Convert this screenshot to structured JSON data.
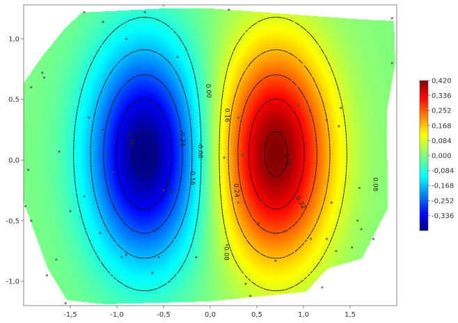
{
  "chart_data": {
    "type": "heatmap",
    "subtype": "interpolated-contour",
    "title": "",
    "xlabel": "",
    "ylabel": "",
    "xlim": [
      -2.0,
      2.0
    ],
    "ylim": [
      -1.2,
      1.28
    ],
    "x_ticks": [
      {
        "value": -1.5,
        "label": "-1,5"
      },
      {
        "value": -1.0,
        "label": "-1,0"
      },
      {
        "value": -0.5,
        "label": "-0,5"
      },
      {
        "value": 0.0,
        "label": "0,0"
      },
      {
        "value": 0.5,
        "label": "0,5"
      },
      {
        "value": 1.0,
        "label": "1,0"
      },
      {
        "value": 1.5,
        "label": "1,5"
      }
    ],
    "y_ticks": [
      {
        "value": 1.0,
        "label": "1,0"
      },
      {
        "value": 0.5,
        "label": "0,5"
      },
      {
        "value": 0.0,
        "label": "0,0"
      },
      {
        "value": -0.5,
        "label": "-0,5"
      },
      {
        "value": -1.0,
        "label": "-1,0"
      }
    ],
    "colorbar": {
      "range": [
        -0.42,
        0.42
      ],
      "colormap": "jet",
      "ticks": [
        {
          "value": 0.42,
          "label": "0,420"
        },
        {
          "value": 0.336,
          "label": "0,336"
        },
        {
          "value": 0.252,
          "label": "0,252"
        },
        {
          "value": 0.168,
          "label": "0,168"
        },
        {
          "value": 0.084,
          "label": "0,084"
        },
        {
          "value": 0.0,
          "label": "0,000"
        },
        {
          "value": -0.084,
          "label": "-0,084"
        },
        {
          "value": -0.168,
          "label": "-0,168"
        },
        {
          "value": -0.252,
          "label": "-0,252"
        },
        {
          "value": -0.336,
          "label": "-0,336"
        }
      ]
    },
    "field": {
      "negative_peak": {
        "x": -0.7,
        "y": 0.05,
        "value": -0.42
      },
      "positive_peak": {
        "x": 0.7,
        "y": 0.05,
        "value": 0.42
      },
      "sigma_x": 0.42,
      "sigma_y": 0.62
    },
    "contour_levels": [
      -0.4,
      -0.32,
      -0.24,
      -0.16,
      -0.08,
      0.0,
      0.08,
      0.16,
      0.24,
      0.32,
      0.4
    ],
    "contour_labels": [
      {
        "text": "0.00",
        "x": -0.02,
        "y": 0.57,
        "rot": 85
      },
      {
        "text": "0.16",
        "x": 0.18,
        "y": 0.37,
        "rot": 90
      },
      {
        "text": "0.40",
        "x": 0.83,
        "y": 0.0,
        "rot": 70
      },
      {
        "text": "0.24",
        "x": 0.28,
        "y": -0.25,
        "rot": 85
      },
      {
        "text": "0.32",
        "x": 0.97,
        "y": -0.35,
        "rot": 60
      },
      {
        "text": "0.08",
        "x": 1.77,
        "y": -0.2,
        "rot": 90
      },
      {
        "text": "0.08",
        "x": 0.17,
        "y": -0.77,
        "rot": 90
      },
      {
        "text": "-0.08",
        "x": -0.11,
        "y": 0.08,
        "rot": 90
      },
      {
        "text": "-0.16",
        "x": -0.19,
        "y": -0.14,
        "rot": 90
      },
      {
        "text": "-0.24",
        "x": -0.3,
        "y": 0.18,
        "rot": 90
      },
      {
        "text": "-0.40",
        "x": -0.86,
        "y": 0.18,
        "rot": 80
      },
      {
        "text": "-0.32",
        "x": -0.45,
        "y": -0.22,
        "rot": 80
      }
    ],
    "points": [
      [
        -1.35,
        1.22
      ],
      [
        -1.15,
        1.14
      ],
      [
        -0.7,
        1.22
      ],
      [
        -0.5,
        1.28
      ],
      [
        -0.9,
        1.0
      ],
      [
        -1.78,
        0.68
      ],
      [
        -1.3,
        0.35
      ],
      [
        -1.15,
        0.25
      ],
      [
        -1.8,
        0.72
      ],
      [
        -1.62,
        0.07
      ],
      [
        -1.98,
        -0.38
      ],
      [
        -1.92,
        -0.5
      ],
      [
        -1.5,
        -0.42
      ],
      [
        -1.35,
        -0.3
      ],
      [
        -1.1,
        0.05
      ],
      [
        -1.18,
        -0.6
      ],
      [
        -0.95,
        -0.8
      ],
      [
        -0.9,
        -0.78
      ],
      [
        -1.65,
        -0.82
      ],
      [
        -1.75,
        -0.95
      ],
      [
        -0.55,
        -0.8
      ],
      [
        -0.62,
        -0.93
      ],
      [
        -1.55,
        -1.18
      ],
      [
        -0.15,
        -0.8
      ],
      [
        -1.05,
        -0.1
      ],
      [
        -0.5,
        -0.25
      ],
      [
        -1.95,
        -0.08
      ],
      [
        -1.92,
        0.6
      ],
      [
        -0.35,
        0.85
      ],
      [
        0.18,
        -0.7
      ],
      [
        0.3,
        -0.35
      ],
      [
        0.35,
        0.04
      ],
      [
        0.52,
        -0.52
      ],
      [
        0.38,
        -1.02
      ],
      [
        0.43,
        -1.12
      ],
      [
        0.7,
        -0.83
      ],
      [
        1.08,
        -0.65
      ],
      [
        1.2,
        -1.05
      ],
      [
        1.35,
        -0.75
      ],
      [
        1.58,
        -0.5
      ],
      [
        1.62,
        -0.57
      ],
      [
        1.75,
        -0.65
      ],
      [
        1.6,
        -0.23
      ],
      [
        1.4,
        0.43
      ],
      [
        1.38,
        0.28
      ],
      [
        1.25,
        0.33
      ],
      [
        1.3,
        -0.35
      ],
      [
        1.0,
        0.1
      ],
      [
        1.95,
        0.8
      ],
      [
        1.95,
        1.17
      ],
      [
        0.3,
        0.35
      ],
      [
        0.2,
        1.24
      ],
      [
        0.15,
        0.02
      ],
      [
        0.95,
        0.45
      ],
      [
        1.25,
        -0.65
      ],
      [
        1.52,
        -0.72
      ]
    ]
  }
}
